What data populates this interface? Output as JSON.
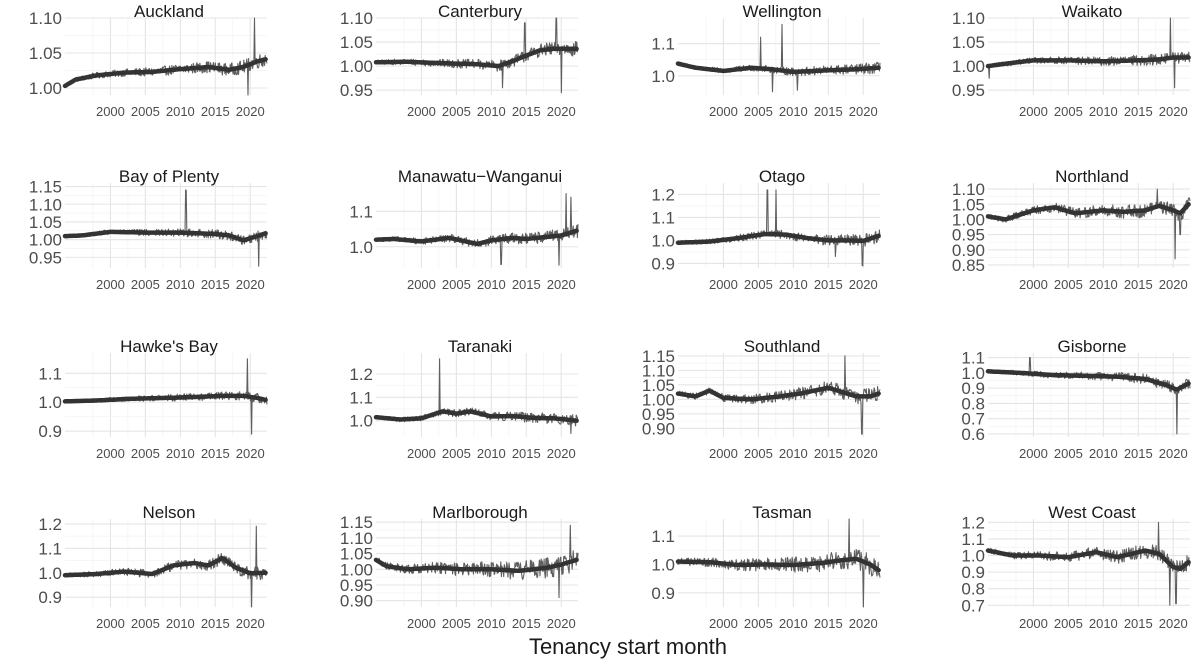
{
  "chart_data": {
    "type": "line",
    "layout": "facet grid, 4 rows x 4 columns",
    "xlabel": "Tenancy start month",
    "ylabel": "",
    "x_ticks": [
      2000,
      2005,
      2010,
      2015,
      2020
    ],
    "grid": true,
    "theme": "minimal",
    "colors": {
      "raw": "#5f5f5f",
      "trend": "#333333",
      "grid": "#e5e5e5"
    },
    "x_unit": "year",
    "x_range": [
      1993.5,
      2022.4
    ],
    "panels": [
      {
        "name": "Auckland",
        "y_ticks": [
          "1.00",
          "1.05",
          "1.10"
        ],
        "ylim": [
          0.99,
          1.1
        ],
        "trend": [
          [
            1993.5,
            1.003
          ],
          [
            1995,
            1.012
          ],
          [
            1998,
            1.018
          ],
          [
            2002,
            1.022
          ],
          [
            2006,
            1.023
          ],
          [
            2010,
            1.027
          ],
          [
            2014,
            1.03
          ],
          [
            2017,
            1.026
          ],
          [
            2019,
            1.03
          ],
          [
            2021,
            1.038
          ],
          [
            2022.2,
            1.041
          ]
        ],
        "spikes": [
          [
            2019.7,
            0.965
          ],
          [
            2020.6,
            1.1
          ]
        ],
        "noise": 0.008
      },
      {
        "name": "Canterbury",
        "y_ticks": [
          "0.95",
          "1.00",
          "1.05",
          "1.10"
        ],
        "ylim": [
          0.94,
          1.1
        ],
        "trend": [
          [
            1993.5,
            1.008
          ],
          [
            1998,
            1.009
          ],
          [
            2003,
            1.006
          ],
          [
            2008,
            1.004
          ],
          [
            2011,
            1.0
          ],
          [
            2013,
            1.01
          ],
          [
            2015,
            1.022
          ],
          [
            2017,
            1.033
          ],
          [
            2019,
            1.036
          ],
          [
            2022.2,
            1.036
          ]
        ],
        "spikes": [
          [
            2011.6,
            0.955
          ],
          [
            2014.8,
            1.09
          ],
          [
            2019.3,
            1.1
          ],
          [
            2020.0,
            0.945
          ]
        ],
        "noise": 0.012
      },
      {
        "name": "Wellington",
        "y_ticks": [
          "1.0",
          "1.1"
        ],
        "ylim": [
          0.94,
          1.18
        ],
        "trend": [
          [
            1993.5,
            1.038
          ],
          [
            1996,
            1.025
          ],
          [
            2000,
            1.015
          ],
          [
            2004,
            1.025
          ],
          [
            2007,
            1.02
          ],
          [
            2010,
            1.012
          ],
          [
            2013,
            1.015
          ],
          [
            2016,
            1.018
          ],
          [
            2019,
            1.02
          ],
          [
            2022.2,
            1.025
          ]
        ],
        "spikes": [
          [
            2005.3,
            1.12
          ],
          [
            2008.4,
            1.16
          ],
          [
            2007.0,
            0.95
          ],
          [
            2010.6,
            0.955
          ]
        ],
        "noise": 0.014
      },
      {
        "name": "Waikato",
        "y_ticks": [
          "0.95",
          "1.00",
          "1.05",
          "1.10"
        ],
        "ylim": [
          0.94,
          1.1
        ],
        "trend": [
          [
            1993.5,
            1.0
          ],
          [
            1996,
            1.005
          ],
          [
            2000,
            1.012
          ],
          [
            2005,
            1.012
          ],
          [
            2010,
            1.01
          ],
          [
            2015,
            1.012
          ],
          [
            2018,
            1.014
          ],
          [
            2020,
            1.018
          ],
          [
            2022.2,
            1.018
          ]
        ],
        "spikes": [
          [
            2019.6,
            1.1
          ],
          [
            2020.2,
            0.955
          ],
          [
            1993.7,
            0.975
          ]
        ],
        "noise": 0.01
      },
      {
        "name": "Bay of Plenty",
        "y_ticks": [
          "0.95",
          "1.00",
          "1.05",
          "1.10",
          "1.15"
        ],
        "ylim": [
          0.92,
          1.16
        ],
        "trend": [
          [
            1993.5,
            1.01
          ],
          [
            1996,
            1.012
          ],
          [
            2000,
            1.022
          ],
          [
            2005,
            1.02
          ],
          [
            2010,
            1.02
          ],
          [
            2015,
            1.016
          ],
          [
            2017,
            1.012
          ],
          [
            2019,
            0.998
          ],
          [
            2021,
            1.01
          ],
          [
            2022.2,
            1.018
          ]
        ],
        "spikes": [
          [
            2010.8,
            1.14
          ],
          [
            2021.2,
            0.925
          ]
        ],
        "noise": 0.012
      },
      {
        "name": "Manawatu−Wanganui",
        "y_ticks": [
          "1.0",
          "1.1"
        ],
        "ylim": [
          0.94,
          1.18
        ],
        "trend": [
          [
            1993.5,
            1.02
          ],
          [
            1996,
            1.022
          ],
          [
            2000,
            1.015
          ],
          [
            2004,
            1.025
          ],
          [
            2008,
            1.008
          ],
          [
            2010,
            1.018
          ],
          [
            2013,
            1.025
          ],
          [
            2015,
            1.022
          ],
          [
            2018,
            1.028
          ],
          [
            2020,
            1.032
          ],
          [
            2022.2,
            1.045
          ]
        ],
        "spikes": [
          [
            2011.4,
            0.95
          ],
          [
            2020.7,
            1.15
          ],
          [
            2021.4,
            1.14
          ],
          [
            2019.7,
            0.948
          ]
        ],
        "noise": 0.015
      },
      {
        "name": "Otago",
        "y_ticks": [
          "0.9",
          "1.0",
          "1.1",
          "1.2"
        ],
        "ylim": [
          0.88,
          1.25
        ],
        "trend": [
          [
            1993.5,
            0.99
          ],
          [
            1998,
            0.995
          ],
          [
            2002,
            1.01
          ],
          [
            2006,
            1.028
          ],
          [
            2009,
            1.025
          ],
          [
            2012,
            1.01
          ],
          [
            2015,
            1.0
          ],
          [
            2018,
            1.0
          ],
          [
            2020,
            0.998
          ],
          [
            2022.2,
            1.02
          ]
        ],
        "spikes": [
          [
            2006.3,
            1.22
          ],
          [
            2007.5,
            1.22
          ],
          [
            2016.0,
            0.93
          ],
          [
            2019.9,
            0.89
          ]
        ],
        "noise": 0.022
      },
      {
        "name": "Northland",
        "y_ticks": [
          "0.85",
          "0.90",
          "0.95",
          "1.00",
          "1.05",
          "1.10"
        ],
        "ylim": [
          0.84,
          1.12
        ],
        "trend": [
          [
            1993.5,
            1.01
          ],
          [
            1996,
            1.0
          ],
          [
            2000,
            1.03
          ],
          [
            2003,
            1.04
          ],
          [
            2006,
            1.02
          ],
          [
            2010,
            1.03
          ],
          [
            2013,
            1.025
          ],
          [
            2016,
            1.03
          ],
          [
            2018,
            1.045
          ],
          [
            2020,
            1.03
          ],
          [
            2021,
            1.02
          ],
          [
            2022.2,
            1.05
          ]
        ],
        "spikes": [
          [
            2017.7,
            1.1
          ],
          [
            2020.3,
            0.87
          ],
          [
            2021.0,
            0.95
          ]
        ],
        "noise": 0.022
      },
      {
        "name": "Hawke's Bay",
        "y_ticks": [
          "0.9",
          "1.0",
          "1.1"
        ],
        "ylim": [
          0.88,
          1.17
        ],
        "trend": [
          [
            1993.5,
            1.003
          ],
          [
            1998,
            1.006
          ],
          [
            2003,
            1.012
          ],
          [
            2008,
            1.015
          ],
          [
            2012,
            1.018
          ],
          [
            2016,
            1.022
          ],
          [
            2019,
            1.022
          ],
          [
            2021,
            1.015
          ],
          [
            2022.2,
            1.008
          ]
        ],
        "spikes": [
          [
            2019.6,
            1.15
          ],
          [
            2020.2,
            0.89
          ]
        ],
        "noise": 0.013
      },
      {
        "name": "Taranaki",
        "y_ticks": [
          "1.0",
          "1.1",
          "1.2"
        ],
        "ylim": [
          0.93,
          1.29
        ],
        "trend": [
          [
            1993.5,
            1.015
          ],
          [
            1997,
            1.005
          ],
          [
            2000,
            1.01
          ],
          [
            2003,
            1.04
          ],
          [
            2005,
            1.03
          ],
          [
            2007,
            1.04
          ],
          [
            2010,
            1.018
          ],
          [
            2013,
            1.02
          ],
          [
            2016,
            1.012
          ],
          [
            2019,
            1.01
          ],
          [
            2022.2,
            1.0
          ]
        ],
        "spikes": [
          [
            2002.6,
            1.265
          ],
          [
            2021.4,
            0.945
          ]
        ],
        "noise": 0.02
      },
      {
        "name": "Southland",
        "y_ticks": [
          "0.90",
          "0.95",
          "1.00",
          "1.05",
          "1.10",
          "1.15"
        ],
        "ylim": [
          0.87,
          1.16
        ],
        "trend": [
          [
            1993.5,
            1.02
          ],
          [
            1996,
            1.01
          ],
          [
            1998,
            1.03
          ],
          [
            2000,
            1.005
          ],
          [
            2004,
            1.0
          ],
          [
            2008,
            1.01
          ],
          [
            2011,
            1.02
          ],
          [
            2015,
            1.04
          ],
          [
            2017,
            1.025
          ],
          [
            2019,
            1.01
          ],
          [
            2021,
            1.01
          ],
          [
            2022.2,
            1.02
          ]
        ],
        "spikes": [
          [
            2017.4,
            1.15
          ],
          [
            2019.8,
            0.88
          ]
        ],
        "noise": 0.022
      },
      {
        "name": "Gisborne",
        "y_ticks": [
          "0.6",
          "0.7",
          "0.8",
          "0.9",
          "1.0",
          "1.1"
        ],
        "ylim": [
          0.58,
          1.13
        ],
        "trend": [
          [
            1993.5,
            1.01
          ],
          [
            1998,
            1.0
          ],
          [
            2003,
            0.985
          ],
          [
            2008,
            0.98
          ],
          [
            2012,
            0.975
          ],
          [
            2016,
            0.96
          ],
          [
            2019,
            0.92
          ],
          [
            2020.5,
            0.89
          ],
          [
            2022.2,
            0.93
          ]
        ],
        "spikes": [
          [
            2020.5,
            0.6
          ],
          [
            1999.5,
            1.1
          ]
        ],
        "noise": 0.03
      },
      {
        "name": "Nelson",
        "y_ticks": [
          "0.9",
          "1.0",
          "1.1",
          "1.2"
        ],
        "ylim": [
          0.86,
          1.22
        ],
        "trend": [
          [
            1993.5,
            0.99
          ],
          [
            1998,
            0.995
          ],
          [
            2002,
            1.005
          ],
          [
            2006,
            0.995
          ],
          [
            2009,
            1.03
          ],
          [
            2012,
            1.04
          ],
          [
            2014,
            1.03
          ],
          [
            2016,
            1.06
          ],
          [
            2018,
            1.02
          ],
          [
            2020,
            0.998
          ],
          [
            2022.2,
            1.0
          ]
        ],
        "spikes": [
          [
            2020.9,
            1.19
          ],
          [
            2020.2,
            0.86
          ]
        ],
        "noise": 0.022
      },
      {
        "name": "Marlborough",
        "y_ticks": [
          "0.90",
          "0.95",
          "1.00",
          "1.05",
          "1.10",
          "1.15"
        ],
        "ylim": [
          0.88,
          1.16
        ],
        "trend": [
          [
            1993.5,
            1.03
          ],
          [
            1995,
            1.01
          ],
          [
            1998,
            1.0
          ],
          [
            2002,
            1.005
          ],
          [
            2006,
            1.0
          ],
          [
            2010,
            1.0
          ],
          [
            2014,
            0.995
          ],
          [
            2018,
            1.005
          ],
          [
            2020,
            1.015
          ],
          [
            2022.2,
            1.03
          ]
        ],
        "spikes": [
          [
            2021.3,
            1.14
          ],
          [
            2019.7,
            0.91
          ]
        ],
        "noise": 0.028
      },
      {
        "name": "Tasman",
        "y_ticks": [
          "0.9",
          "1.0",
          "1.1"
        ],
        "ylim": [
          0.85,
          1.16
        ],
        "trend": [
          [
            1993.5,
            1.01
          ],
          [
            1998,
            1.008
          ],
          [
            2002,
            0.998
          ],
          [
            2006,
            1.0
          ],
          [
            2010,
            0.998
          ],
          [
            2014,
            1.005
          ],
          [
            2017,
            1.015
          ],
          [
            2019,
            1.02
          ],
          [
            2021,
            1.0
          ],
          [
            2022.2,
            0.98
          ]
        ],
        "spikes": [
          [
            2018.0,
            1.16
          ],
          [
            2020.0,
            0.85
          ]
        ],
        "noise": 0.03
      },
      {
        "name": "West Coast",
        "y_ticks": [
          "0.7",
          "0.8",
          "0.9",
          "1.0",
          "1.1",
          "1.2"
        ],
        "ylim": [
          0.69,
          1.22
        ],
        "trend": [
          [
            1993.5,
            1.03
          ],
          [
            1997,
            1.0
          ],
          [
            2001,
            1.0
          ],
          [
            2005,
            0.99
          ],
          [
            2009,
            1.02
          ],
          [
            2012,
            0.99
          ],
          [
            2016,
            1.03
          ],
          [
            2018,
            1.01
          ],
          [
            2020,
            0.93
          ],
          [
            2021,
            0.92
          ],
          [
            2022.2,
            0.96
          ]
        ],
        "spikes": [
          [
            2017.9,
            1.2
          ],
          [
            2019.5,
            0.7
          ],
          [
            2020.4,
            0.71
          ]
        ],
        "noise": 0.04
      }
    ]
  }
}
